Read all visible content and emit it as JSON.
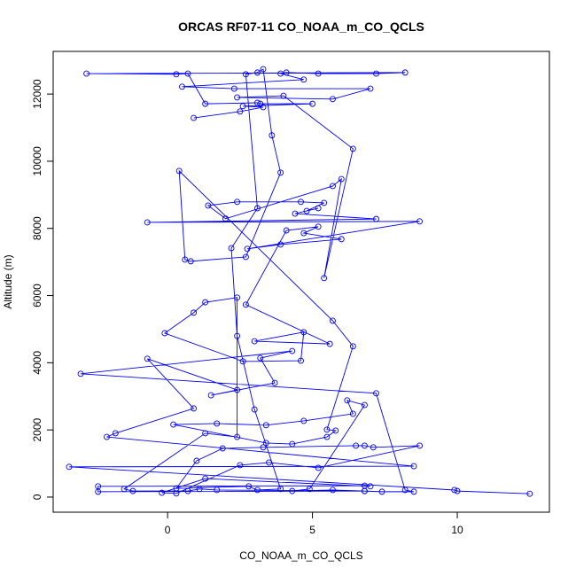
{
  "chart_data": {
    "type": "line",
    "markers": true,
    "title": "ORCAS RF07-11 CO_NOAA_m_CO_QCLS",
    "x_label": "CO_NOAA_m_CO_QCLS",
    "y_label": "Altitude (m)",
    "xlim": [
      -3.95,
      13.18
    ],
    "ylim": [
      -450,
      13270
    ],
    "xticks": [
      0,
      5,
      10
    ],
    "yticks": [
      0,
      2000,
      4000,
      6000,
      8000,
      10000,
      12000
    ],
    "series": [
      {
        "color": "#0000ff",
        "x": [
          12.5,
          10.0,
          9.9,
          -3.4,
          8.5,
          -2.1,
          -1.8,
          0.9,
          -0.7,
          2.4,
          1.5,
          3.7,
          3.2,
          4.3,
          -3.0,
          7.2,
          8.2,
          8.5,
          7.4,
          6.8,
          -2.4,
          -2.4,
          6.8,
          7.0,
          1.3,
          -0.2,
          0.3,
          2.5,
          3.5,
          5.2,
          8.7,
          7.1,
          6.8,
          6.5,
          3.3,
          1.9,
          1.0,
          0.3,
          2.8,
          3.1,
          3.9,
          3.0,
          2.4,
          2.2,
          3.1,
          2.7,
          3.1,
          3.3,
          3.6,
          3.9,
          2.7,
          0.8,
          0.6,
          0.4,
          5.7,
          6.4,
          5.5,
          5.8,
          5.5,
          4.3,
          3.4,
          0.2,
          1.7,
          3.4,
          4.7,
          6.4,
          6.2,
          6.8,
          4.9,
          4.3,
          5.7,
          6.8,
          1.7,
          1.1,
          0.7,
          -1.2,
          -1.5,
          1.3,
          2.4,
          2.4,
          1.3,
          0.9,
          -0.1,
          2.6,
          4.6,
          4.7,
          3.0,
          5.6,
          2.7,
          4.1,
          5.2,
          4.7,
          6.0,
          3.9,
          2.75,
          8.7,
          -0.7,
          7.2,
          4.4,
          5.2,
          4.8,
          5.4,
          4.6,
          2.4,
          1.4,
          2.0,
          5.7,
          6.0,
          5.4,
          6.4,
          4.0,
          2.4,
          5.7,
          7.0,
          2.3,
          0.5,
          4.7,
          3.9,
          4.1,
          5.2,
          7.2,
          8.2,
          -2.8,
          0.3,
          0.7,
          1.3,
          3.1,
          3.2,
          5.0,
          2.6,
          3.3,
          2.5,
          0.9
        ],
        "values": [
          100,
          180,
          210,
          900,
          920,
          1790,
          1900,
          2640,
          4120,
          3190,
          3030,
          3400,
          4140,
          4350,
          3670,
          3090,
          210,
          160,
          160,
          180,
          160,
          320,
          340,
          320,
          550,
          130,
          110,
          950,
          1030,
          870,
          1530,
          1480,
          1530,
          1530,
          1480,
          1450,
          1080,
          260,
          320,
          210,
          240,
          2610,
          4800,
          7410,
          8600,
          12590,
          12640,
          12740,
          10770,
          9660,
          7150,
          7020,
          7070,
          9710,
          5250,
          4490,
          2010,
          1980,
          1790,
          1580,
          1610,
          2160,
          2190,
          2140,
          2270,
          2480,
          2880,
          2740,
          240,
          180,
          210,
          180,
          210,
          240,
          180,
          180,
          240,
          1900,
          1790,
          5940,
          5800,
          5490,
          4880,
          4040,
          4060,
          4910,
          4640,
          4560,
          5730,
          7940,
          8050,
          7860,
          7680,
          7520,
          7390,
          8210,
          8180,
          8280,
          8440,
          8600,
          8520,
          8760,
          8790,
          8790,
          8680,
          8290,
          9260,
          9470,
          6520,
          10370,
          11950,
          11900,
          11850,
          12160,
          12160,
          12220,
          12430,
          12610,
          12640,
          12610,
          12610,
          12640,
          12610,
          12590,
          12610,
          11710,
          11740,
          11710,
          11710,
          11640,
          11610,
          11480,
          11290
        ]
      }
    ]
  }
}
